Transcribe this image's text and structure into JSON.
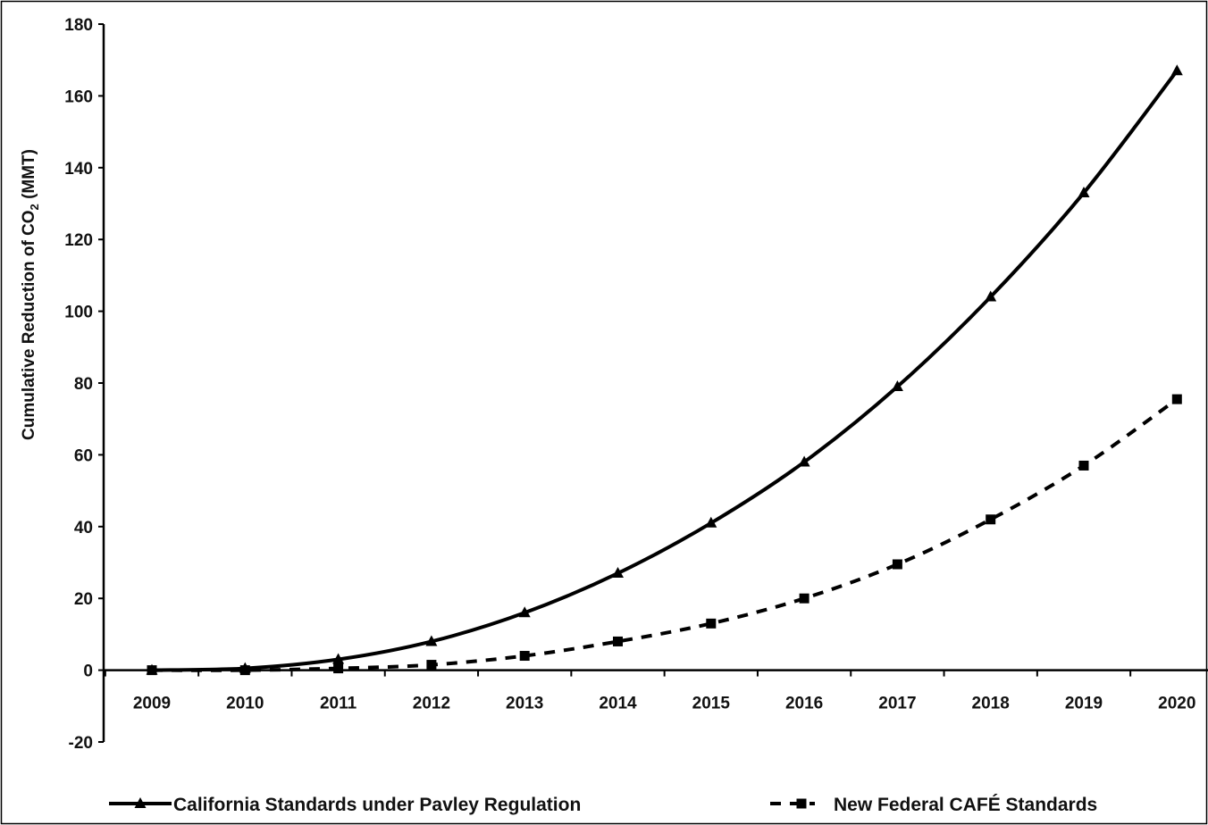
{
  "chart_data": {
    "type": "line",
    "title": "",
    "xlabel": "",
    "ylabel": {
      "prefix": "Cumulative Reduction of CO",
      "subscript": "2",
      "suffix": " (MMT)"
    },
    "x": [
      "2009",
      "2010",
      "2011",
      "2012",
      "2013",
      "2014",
      "2015",
      "2016",
      "2017",
      "2018",
      "2019",
      "2020"
    ],
    "ylim": [
      -20,
      180
    ],
    "yticks": [
      "-20",
      "0",
      "20",
      "40",
      "60",
      "80",
      "100",
      "120",
      "140",
      "160",
      "180"
    ],
    "grid": false,
    "legend_position": "bottom",
    "series": [
      {
        "name": "California Standards under Pavley Regulation",
        "style": "solid",
        "marker": "triangle",
        "color": "#000000",
        "values": [
          0,
          0.5,
          3,
          8,
          16,
          27,
          41,
          58,
          79,
          104,
          133,
          167
        ]
      },
      {
        "name": "New Federal CAFÉ Standards",
        "style": "dashed",
        "marker": "square",
        "color": "#000000",
        "values": [
          0,
          0,
          0.5,
          1.5,
          4,
          8,
          13,
          20,
          29.5,
          42,
          57,
          75.5
        ]
      }
    ]
  }
}
